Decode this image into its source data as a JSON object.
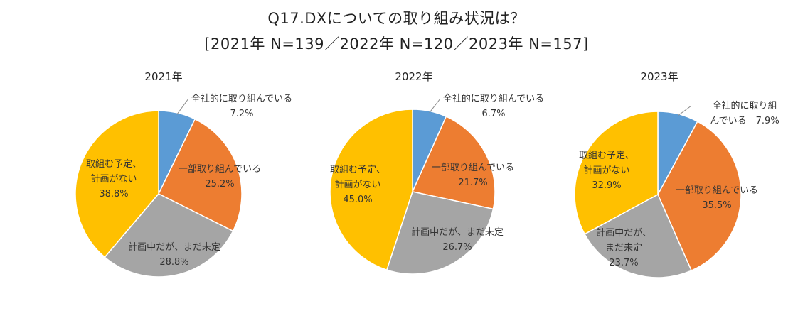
{
  "title": "Q17.DXについての取り組み状況は？",
  "subtitle": "[2021年 N=139／2022年 N=120／2023年 N=157]",
  "colors": {
    "全社的に取り組んでいる": "#5b9bd5",
    "一部取り組んでいる": "#ed7d31",
    "計画中だが、まだ未定": "#a5a5a5",
    "取組む予定、計画がない": "#ffc000"
  },
  "chart_data": [
    {
      "type": "pie",
      "title": "2021年",
      "categories": [
        "全社的に取り組んでいる",
        "一部取り組んでいる",
        "計画中だが、まだ未定",
        "取組む予定、計画がない"
      ],
      "values": [
        7.2,
        25.2,
        28.8,
        38.8
      ],
      "labels": [
        [
          "全社的に取り組んでいる",
          "7.2%"
        ],
        [
          "一部取り組んでいる",
          "25.2%"
        ],
        [
          "計画中だが、まだ未定",
          "28.8%"
        ],
        [
          "取組む予定、",
          "計画がない",
          "38.8%"
        ]
      ]
    },
    {
      "type": "pie",
      "title": "2022年",
      "categories": [
        "全社的に取り組んでいる",
        "一部取り組んでいる",
        "計画中だが、まだ未定",
        "取組む予定、計画がない"
      ],
      "values": [
        6.7,
        21.7,
        26.7,
        45.0
      ],
      "labels": [
        [
          "全社的に取り組んでいる",
          "6.7%"
        ],
        [
          "一部取り組んでいる",
          "21.7%"
        ],
        [
          "計画中だが、まだ未定",
          "26.7%"
        ],
        [
          "取組む予定、",
          "計画がない",
          "45.0%"
        ]
      ]
    },
    {
      "type": "pie",
      "title": "2023年",
      "categories": [
        "全社的に取り組んでいる",
        "一部取り組んでいる",
        "計画中だが、まだ未定",
        "取組む予定、計画がない"
      ],
      "values": [
        7.9,
        35.5,
        23.7,
        32.9
      ],
      "labels": [
        [
          "全社的に取り組",
          "んでいる　7.9%"
        ],
        [
          "一部取り組んでいる",
          "35.5%"
        ],
        [
          "計画中だが、",
          "まだ未定",
          "23.7%"
        ],
        [
          "取組む予定、",
          "計画がない",
          "32.9%"
        ]
      ]
    }
  ]
}
